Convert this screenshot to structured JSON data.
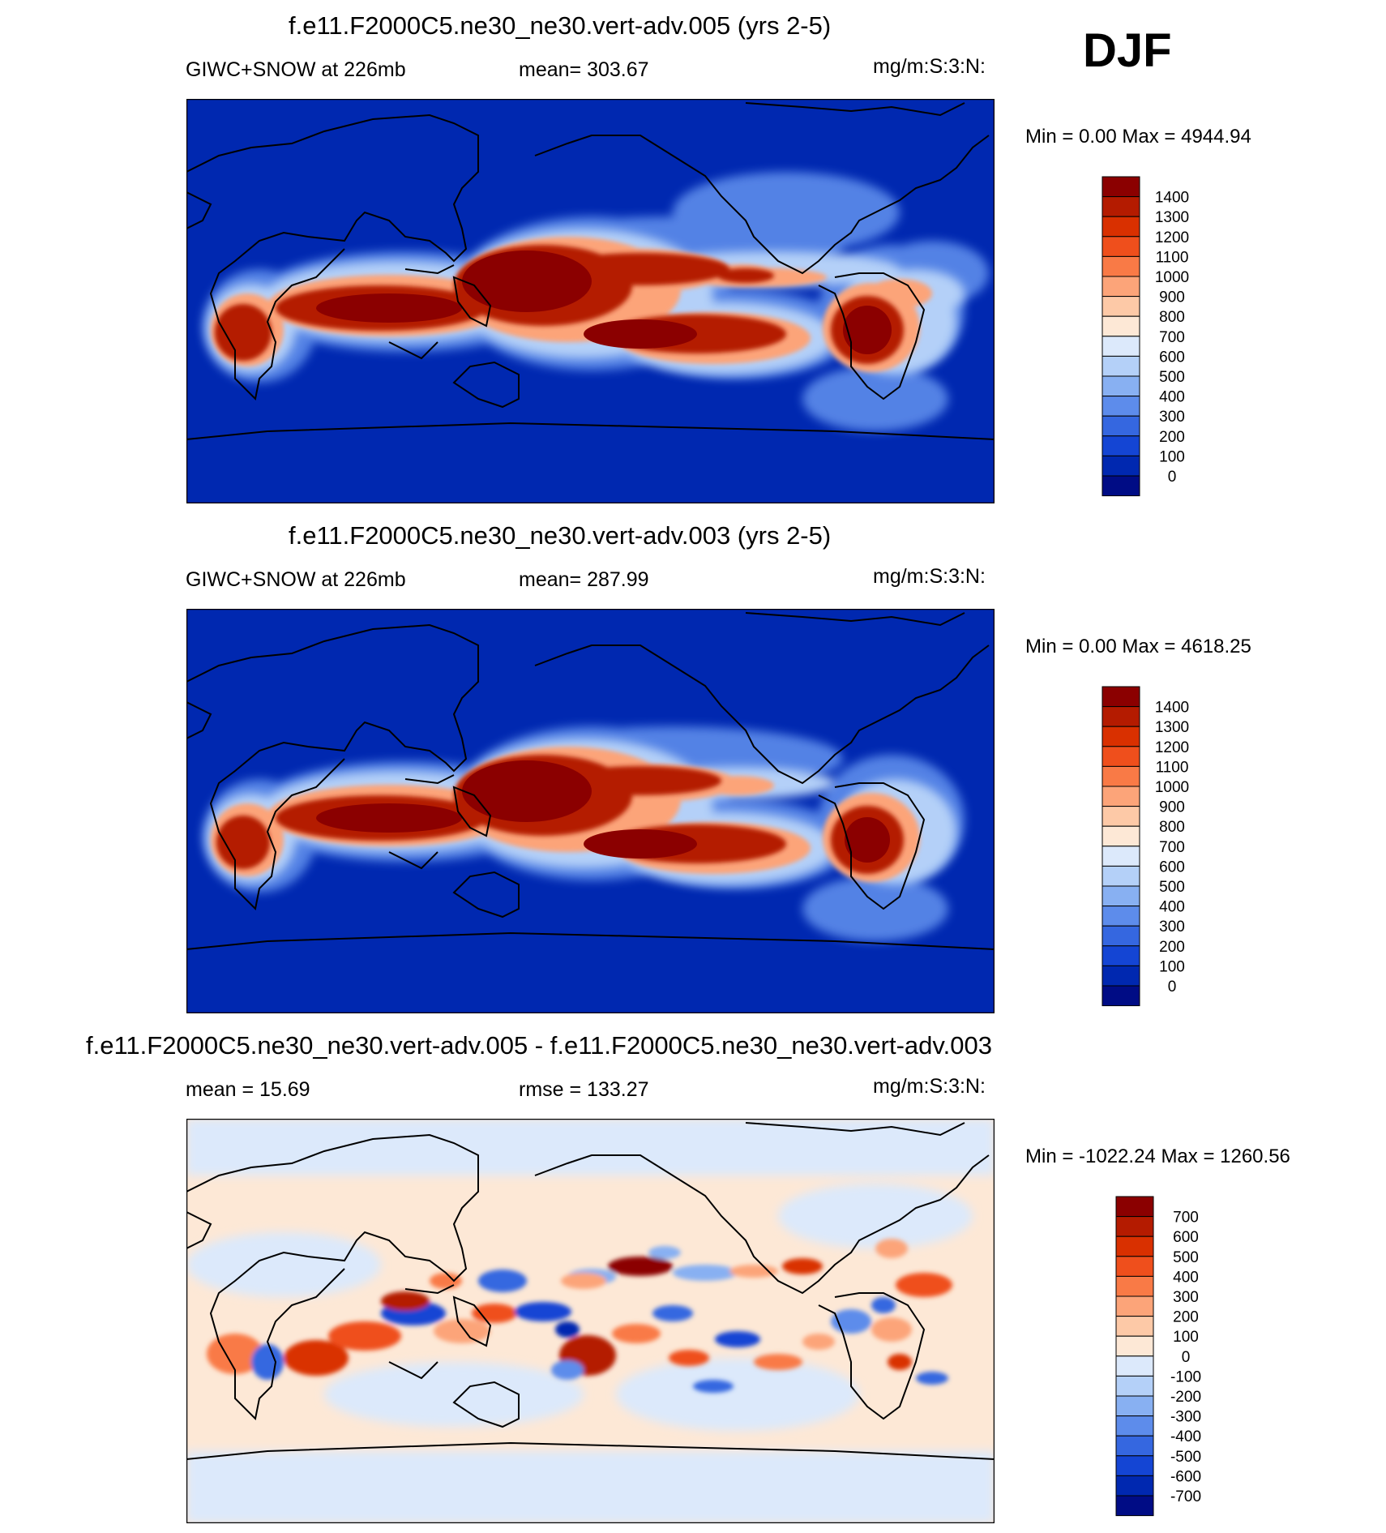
{
  "season": "DJF",
  "panels": [
    {
      "title": "f.e11.F2000C5.ne30_ne30.vert-adv.005 (yrs 2-5)",
      "left_label": "GIWC+SNOW at 226mb",
      "center_label": "mean= 303.67",
      "units": "mg/m:S:3:N:",
      "minmax": "Min =    0.00 Max = 4944.94",
      "colorbar": {
        "labels": [
          "1400",
          "1300",
          "1200",
          "1100",
          "1000",
          "900",
          "800",
          "700",
          "600",
          "500",
          "400",
          "300",
          "200",
          "100",
          "0"
        ],
        "colors": [
          "#8b0000",
          "#b41b00",
          "#d93000",
          "#ef4f1c",
          "#f97a46",
          "#fca479",
          "#fdc9a7",
          "#fde8d6",
          "#dce9fb",
          "#b4d0f8",
          "#88b0f2",
          "#5d8ceb",
          "#3567e0",
          "#1445d4",
          "#0028b0",
          "#000c85"
        ]
      },
      "chart_data": {
        "type": "map",
        "variable": "GIWC+SNOW at 226mb",
        "units": "mg/m:S:3:N:",
        "mean": 303.67,
        "min": 0.0,
        "max": 4944.94,
        "levels": [
          0,
          100,
          200,
          300,
          400,
          500,
          600,
          700,
          800,
          900,
          1000,
          1100,
          1200,
          1300,
          1400
        ]
      }
    },
    {
      "title": "f.e11.F2000C5.ne30_ne30.vert-adv.003 (yrs 2-5)",
      "left_label": "GIWC+SNOW at 226mb",
      "center_label": "mean= 287.99",
      "units": "mg/m:S:3:N:",
      "minmax": "Min =    0.00 Max = 4618.25",
      "colorbar": {
        "labels": [
          "1400",
          "1300",
          "1200",
          "1100",
          "1000",
          "900",
          "800",
          "700",
          "600",
          "500",
          "400",
          "300",
          "200",
          "100",
          "0"
        ],
        "colors": [
          "#8b0000",
          "#b41b00",
          "#d93000",
          "#ef4f1c",
          "#f97a46",
          "#fca479",
          "#fdc9a7",
          "#fde8d6",
          "#dce9fb",
          "#b4d0f8",
          "#88b0f2",
          "#5d8ceb",
          "#3567e0",
          "#1445d4",
          "#0028b0",
          "#000c85"
        ]
      },
      "chart_data": {
        "type": "map",
        "variable": "GIWC+SNOW at 226mb",
        "units": "mg/m:S:3:N:",
        "mean": 287.99,
        "min": 0.0,
        "max": 4618.25,
        "levels": [
          0,
          100,
          200,
          300,
          400,
          500,
          600,
          700,
          800,
          900,
          1000,
          1100,
          1200,
          1300,
          1400
        ]
      }
    },
    {
      "title": "f.e11.F2000C5.ne30_ne30.vert-adv.005 - f.e11.F2000C5.ne30_ne30.vert-adv.003",
      "left_label": "mean =  15.69",
      "center_label": "rmse = 133.27",
      "units": "mg/m:S:3:N:",
      "minmax": "Min = -1022.24 Max = 1260.56",
      "colorbar": {
        "labels": [
          "700",
          "600",
          "500",
          "400",
          "300",
          "200",
          "100",
          "0",
          "-100",
          "-200",
          "-300",
          "-400",
          "-500",
          "-600",
          "-700"
        ],
        "colors": [
          "#8b0000",
          "#b41b00",
          "#d93000",
          "#ef4f1c",
          "#f97a46",
          "#fca479",
          "#fdc9a7",
          "#fde8d6",
          "#dce9fb",
          "#b4d0f8",
          "#88b0f2",
          "#5d8ceb",
          "#3567e0",
          "#1445d4",
          "#0028b0",
          "#000c85"
        ]
      },
      "chart_data": {
        "type": "map",
        "variable": "difference",
        "units": "mg/m:S:3:N:",
        "mean": 15.69,
        "rmse": 133.27,
        "min": -1022.24,
        "max": 1260.56,
        "levels": [
          -700,
          -600,
          -500,
          -400,
          -300,
          -200,
          -100,
          0,
          100,
          200,
          300,
          400,
          500,
          600,
          700
        ]
      }
    }
  ]
}
